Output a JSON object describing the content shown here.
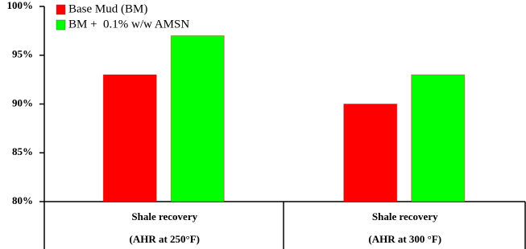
{
  "chart_data": {
    "type": "bar",
    "categories": [
      [
        "Shale recovery",
        "(AHR at 250°F)"
      ],
      [
        "Shale recovery",
        "(AHR at 300 °F)"
      ]
    ],
    "series": [
      {
        "name": "Base Mud (BM)",
        "color": "#ff0000",
        "values": [
          93,
          90
        ]
      },
      {
        "name": "BM +  0.1% w/w AMSN",
        "color": "#00ff00",
        "values": [
          97,
          93
        ]
      }
    ],
    "ylim": [
      80,
      100
    ],
    "yticks": [
      {
        "value": 80,
        "label": "80%"
      },
      {
        "value": 85,
        "label": "85%"
      },
      {
        "value": 90,
        "label": "90%"
      },
      {
        "value": 95,
        "label": "95%"
      },
      {
        "value": 100,
        "label": "100%"
      }
    ],
    "legend": "upper-left"
  }
}
